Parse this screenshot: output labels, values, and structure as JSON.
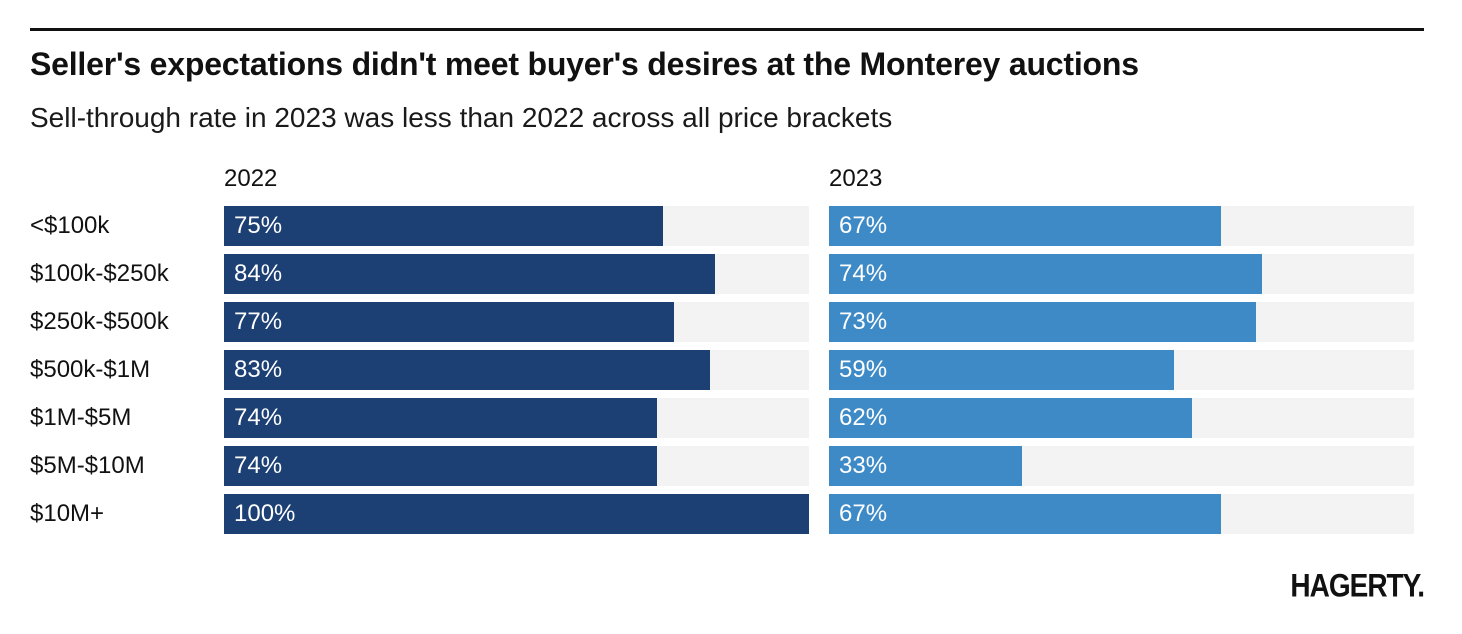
{
  "chart_data": {
    "type": "bar",
    "title": "Seller's expectations didn't meet buyer's desires at the Monterey auctions",
    "subtitle": "Sell-through rate in 2023 was less than 2022 across all price brackets",
    "categories": [
      "<$100k",
      "$100k-$250k",
      "$250k-$500k",
      "$500k-$1M",
      "$1M-$5M",
      "$5M-$10M",
      "$10M+"
    ],
    "series": [
      {
        "name": "2022",
        "values": [
          75,
          84,
          77,
          83,
          74,
          74,
          100
        ],
        "labels": [
          "75%",
          "84%",
          "77%",
          "83%",
          "74%",
          "74%",
          "100%"
        ],
        "color": "#1c3f74"
      },
      {
        "name": "2023",
        "values": [
          67,
          74,
          73,
          59,
          62,
          33,
          67
        ],
        "labels": [
          "67%",
          "74%",
          "73%",
          "59%",
          "62%",
          "33%",
          "67%"
        ],
        "color": "#3e8ac7"
      }
    ],
    "xlim": [
      0,
      100
    ],
    "orientation": "horizontal",
    "layout": "small-multiples"
  },
  "branding": {
    "logo_text": "HAGERTY."
  }
}
